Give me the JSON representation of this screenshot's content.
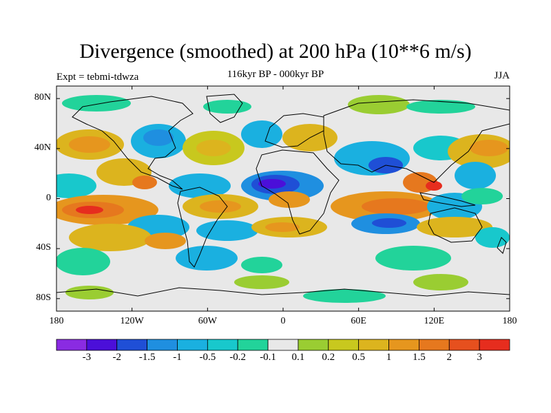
{
  "title": "Divergence (smoothed) at 200 hPa (10**6 m/s)",
  "subtitle_left": "Expt = tebmi-tdwza",
  "subtitle_center": "116kyr BP - 000kyr BP",
  "subtitle_right": "JJA",
  "lat_labels": [
    "80N",
    "40N",
    "0",
    "40S",
    "80S"
  ],
  "lat_values": [
    80,
    40,
    0,
    -40,
    -80
  ],
  "lon_labels": [
    "180",
    "120W",
    "60W",
    "0",
    "60E",
    "120E",
    "180"
  ],
  "lon_values": [
    -180,
    -120,
    -60,
    0,
    60,
    120,
    180
  ],
  "colorbar": {
    "colors": [
      "#8a2be2",
      "#4b0fd9",
      "#1f4fd6",
      "#1f8fe0",
      "#1ab0e0",
      "#18c8cc",
      "#22d39a",
      "#e8e8e8",
      "#9acd32",
      "#c8c81e",
      "#dcb41e",
      "#e6961e",
      "#e6781e",
      "#e6501e",
      "#e62d1e"
    ],
    "labels": [
      "-3",
      "-2",
      "-1.5",
      "-1",
      "-0.5",
      "-0.2",
      "-0.1",
      "0.1",
      "0.2",
      "0.5",
      "1",
      "1.5",
      "2",
      "3"
    ]
  }
}
